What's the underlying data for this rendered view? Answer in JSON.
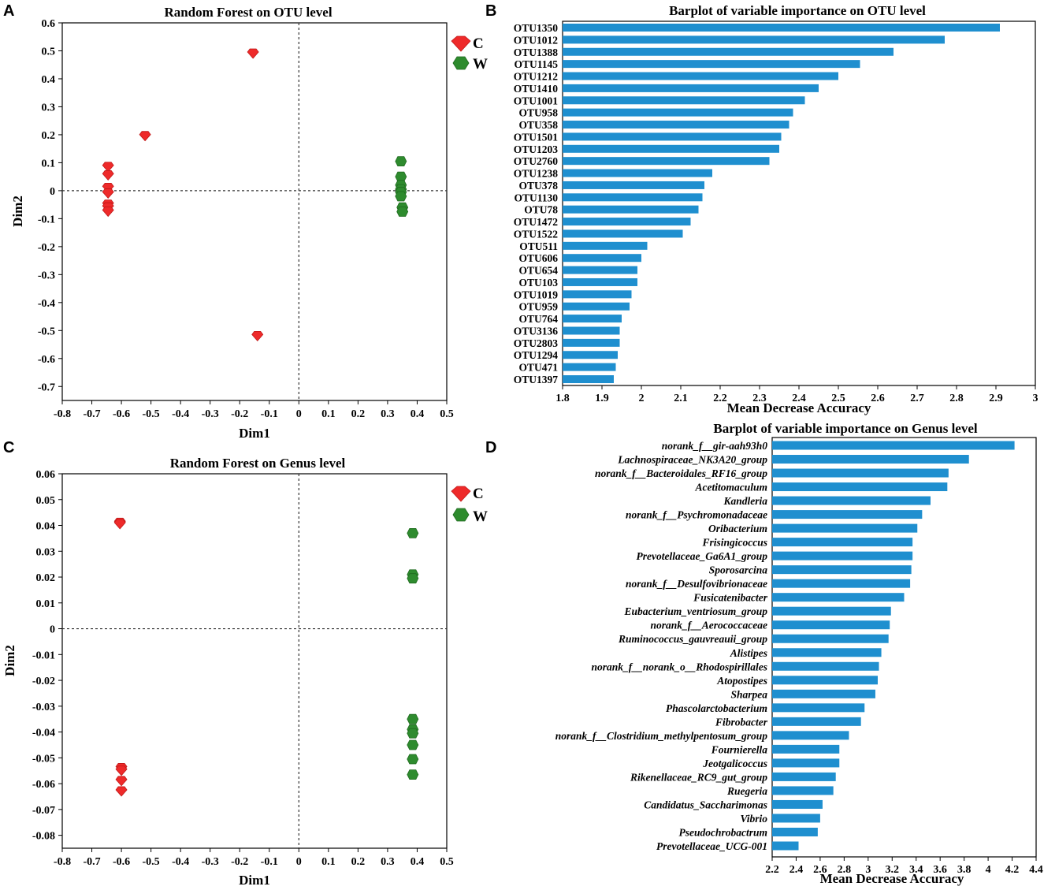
{
  "panels": {
    "A": "A",
    "B": "B",
    "C": "C",
    "D": "D"
  },
  "colors": {
    "C": "#ee2a2a",
    "W": "#2e8b2e",
    "bar": "#1f8fcf"
  },
  "chart_data": [
    {
      "id": "A",
      "type": "scatter",
      "title": "Random Forest on OTU level",
      "xlabel": "Dim1",
      "ylabel": "Dim2",
      "xlim": [
        -0.8,
        0.5
      ],
      "ylim": [
        -0.75,
        0.6
      ],
      "xticks": [
        "-0.8",
        "-0.7",
        "-0.6",
        "-0.5",
        "-0.4",
        "-0.3",
        "-0.2",
        "-0.1",
        "0",
        "0.1",
        "0.2",
        "0.3",
        "0.4",
        "0.5"
      ],
      "yticks": [
        "0.6",
        "0.5",
        "0.4",
        "0.3",
        "0.2",
        "0.1",
        "0",
        "-0.1",
        "-0.2",
        "-0.3",
        "-0.4",
        "-0.5",
        "-0.6",
        "-0.7"
      ],
      "legend": [
        "C",
        "W"
      ],
      "series": [
        {
          "name": "C",
          "points": [
            [
              -0.155,
              0.49
            ],
            [
              -0.52,
              0.195
            ],
            [
              -0.645,
              0.085
            ],
            [
              -0.645,
              0.055
            ],
            [
              -0.645,
              0.01
            ],
            [
              -0.645,
              -0.01
            ],
            [
              -0.645,
              -0.05
            ],
            [
              -0.645,
              -0.06
            ],
            [
              -0.645,
              -0.075
            ],
            [
              -0.14,
              -0.52
            ]
          ]
        },
        {
          "name": "W",
          "points": [
            [
              0.345,
              0.105
            ],
            [
              0.345,
              0.05
            ],
            [
              0.345,
              0.02
            ],
            [
              0.345,
              0.005
            ],
            [
              0.345,
              -0.005
            ],
            [
              0.345,
              -0.02
            ],
            [
              0.35,
              -0.06
            ],
            [
              0.35,
              -0.075
            ]
          ]
        }
      ]
    },
    {
      "id": "B",
      "type": "bar",
      "orientation": "horizontal",
      "title": "Barplot of variable importance on OTU level",
      "xlabel": "Mean Decrease Accuracy",
      "xlim": [
        1.8,
        3.0
      ],
      "xticks": [
        "1.8",
        "1.9",
        "2",
        "2.1",
        "2.2",
        "2.3",
        "2.4",
        "2.5",
        "2.6",
        "2.7",
        "2.8",
        "2.9",
        "3"
      ],
      "categories": [
        "OTU1350",
        "OTU1012",
        "OTU1388",
        "OTU1145",
        "OTU1212",
        "OTU1410",
        "OTU1001",
        "OTU958",
        "OTU358",
        "OTU1501",
        "OTU1203",
        "OTU2760",
        "OTU1238",
        "OTU378",
        "OTU1130",
        "OTU78",
        "OTU1472",
        "OTU1522",
        "OTU511",
        "OTU606",
        "OTU654",
        "OTU103",
        "OTU1019",
        "OTU959",
        "OTU764",
        "OTU3136",
        "OTU2803",
        "OTU1294",
        "OTU471",
        "OTU1397"
      ],
      "values": [
        2.91,
        2.77,
        2.64,
        2.555,
        2.5,
        2.45,
        2.415,
        2.385,
        2.375,
        2.355,
        2.35,
        2.325,
        2.18,
        2.16,
        2.155,
        2.145,
        2.125,
        2.105,
        2.015,
        2.0,
        1.99,
        1.99,
        1.975,
        1.97,
        1.95,
        1.945,
        1.945,
        1.94,
        1.935,
        1.93
      ]
    },
    {
      "id": "C",
      "type": "scatter",
      "title": "Random Forest on Genus level",
      "xlabel": "Dim1",
      "ylabel": "Dim2",
      "xlim": [
        -0.8,
        0.5
      ],
      "ylim": [
        -0.085,
        0.06
      ],
      "xticks": [
        "-0.8",
        "-0.7",
        "-0.6",
        "-0.5",
        "-0.4",
        "-0.3",
        "-0.2",
        "-0.1",
        "0",
        "0.1",
        "0.2",
        "0.3",
        "0.4",
        "0.5"
      ],
      "yticks": [
        "0.06",
        "0.05",
        "0.04",
        "0.03",
        "0.02",
        "0.01",
        "0",
        "-0.01",
        "-0.02",
        "-0.03",
        "-0.04",
        "-0.05",
        "-0.06",
        "-0.07",
        "-0.08"
      ],
      "legend": [
        "C",
        "W"
      ],
      "series": [
        {
          "name": "C",
          "points": [
            [
              -0.605,
              0.041
            ],
            [
              -0.605,
              0.0405
            ],
            [
              -0.6,
              -0.054
            ],
            [
              -0.6,
              -0.055
            ],
            [
              -0.6,
              -0.059
            ],
            [
              -0.6,
              -0.063
            ]
          ]
        },
        {
          "name": "W",
          "points": [
            [
              0.385,
              0.037
            ],
            [
              0.385,
              0.021
            ],
            [
              0.385,
              0.0195
            ],
            [
              0.385,
              -0.035
            ],
            [
              0.385,
              -0.039
            ],
            [
              0.385,
              -0.0405
            ],
            [
              0.385,
              -0.045
            ],
            [
              0.385,
              -0.0505
            ],
            [
              0.385,
              -0.0565
            ]
          ]
        }
      ]
    },
    {
      "id": "D",
      "type": "bar",
      "orientation": "horizontal",
      "title": "Barplot of variable importance on Genus level",
      "xlabel": "Mean Decrease Accuracy",
      "xlim": [
        2.2,
        4.4
      ],
      "xticks": [
        "2.2",
        "2.4",
        "2.6",
        "2.8",
        "3",
        "3.2",
        "3.4",
        "3.6",
        "3.8",
        "4",
        "4.2",
        "4.4"
      ],
      "categories": [
        "norank_f__gir-aah93h0",
        "Lachnospiraceae_NK3A20_group",
        "norank_f__Bacteroidales_RF16_group",
        "Acetitomaculum",
        "Kandleria",
        "norank_f__Psychromonadaceae",
        "Oribacterium",
        "Frisingicoccus",
        "Prevotellaceae_Ga6A1_group",
        "Sporosarcina",
        "norank_f__Desulfovibrionaceae",
        "Fusicatenibacter",
        "Eubacterium_ventriosum_group",
        "norank_f__Aerococcaceae",
        "Ruminococcus_gauvreauii_group",
        "Alistipes",
        "norank_f__norank_o__Rhodospirillales",
        "Atopostipes",
        "Sharpea",
        "Phascolarctobacterium",
        "Fibrobacter",
        "norank_f__Clostridium_methylpentosum_group",
        "Fournierella",
        "Jeotgalicoccus",
        "Rikenellaceae_RC9_gut_group",
        "Ruegeria",
        "Candidatus_Saccharimonas",
        "Vibrio",
        "Pseudochrobactrum",
        "Prevotellaceae_UCG-001"
      ],
      "values": [
        4.22,
        3.84,
        3.67,
        3.66,
        3.52,
        3.45,
        3.41,
        3.37,
        3.37,
        3.36,
        3.35,
        3.3,
        3.19,
        3.18,
        3.17,
        3.11,
        3.09,
        3.08,
        3.06,
        2.97,
        2.94,
        2.84,
        2.76,
        2.76,
        2.73,
        2.71,
        2.62,
        2.6,
        2.58,
        2.42
      ]
    }
  ]
}
